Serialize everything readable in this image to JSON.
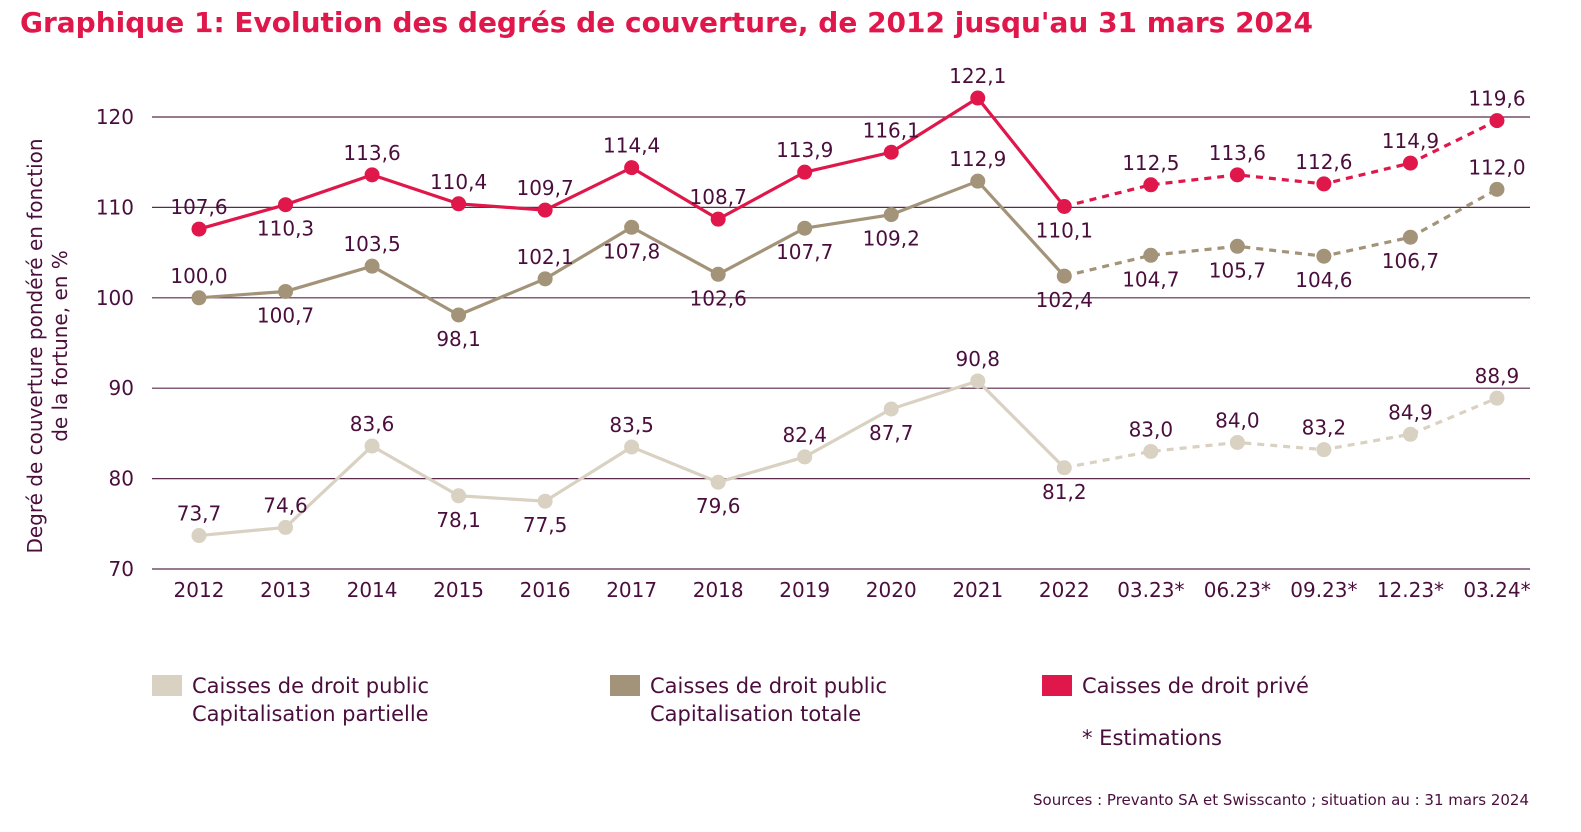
{
  "chart_data": {
    "type": "line",
    "title": "Graphique 1: Evolution des degrés de couverture, de 2012 jusqu'au 31 mars 2024",
    "ylabel_lines": [
      "Degré de couverture pondéré en fonction",
      "de la fortune, en %"
    ],
    "xlabel": "",
    "ylim": [
      70,
      120
    ],
    "yticks": [
      "70",
      "80",
      "90",
      "100",
      "110",
      "120"
    ],
    "ytick_values": [
      70,
      80,
      90,
      100,
      110,
      120
    ],
    "grid": true,
    "categories": [
      "2012",
      "2013",
      "2014",
      "2015",
      "2016",
      "2017",
      "2018",
      "2019",
      "2020",
      "2021",
      "2022",
      "03.23*",
      "06.23*",
      "09.23*",
      "12.23*",
      "03.24*"
    ],
    "estimate_start_index": 10,
    "series": [
      {
        "key": "prive",
        "name": "Caisses de droit privé",
        "name_lines": [
          "Caisses de droit privé"
        ],
        "color": "#e0174a",
        "values": [
          107.6,
          110.3,
          113.6,
          110.4,
          109.7,
          114.4,
          108.7,
          113.9,
          116.1,
          122.1,
          110.1,
          112.5,
          113.6,
          112.6,
          114.9,
          119.6
        ],
        "labels": [
          "107,6",
          "110,3",
          "113,6",
          "110,4",
          "109,7",
          "114,4",
          "108,7",
          "113,9",
          "116,1",
          "122,1",
          "110,1",
          "112,5",
          "113,6",
          "112,6",
          "114,9",
          "119,6"
        ],
        "label_pos": [
          "above",
          "below",
          "above",
          "above",
          "above",
          "above",
          "above",
          "above",
          "above",
          "above",
          "below",
          "above",
          "above",
          "above",
          "above",
          "above"
        ]
      },
      {
        "key": "totale",
        "name": "Caisses de droit public Capitalisation totale",
        "name_lines": [
          "Caisses de droit public",
          "Capitalisation totale"
        ],
        "color": "#a39378",
        "values": [
          100.0,
          100.7,
          103.5,
          98.1,
          102.1,
          107.8,
          102.6,
          107.7,
          109.2,
          112.9,
          102.4,
          104.7,
          105.7,
          104.6,
          106.7,
          112.0
        ],
        "labels": [
          "100,0",
          "100,7",
          "103,5",
          "98,1",
          "102,1",
          "107,8",
          "102,6",
          "107,7",
          "109,2",
          "112,9",
          "102,4",
          "104,7",
          "105,7",
          "104,6",
          "106,7",
          "112,0"
        ],
        "label_pos": [
          "above",
          "below",
          "above",
          "below",
          "above",
          "below",
          "below",
          "below",
          "below",
          "above",
          "below",
          "below",
          "below",
          "below",
          "below",
          "above"
        ]
      },
      {
        "key": "partielle",
        "name": "Caisses de droit public Capitalisation partielle",
        "name_lines": [
          "Caisses de droit public",
          "Capitalisation partielle"
        ],
        "color": "#d9d1c1",
        "values": [
          73.7,
          74.6,
          83.6,
          78.1,
          77.5,
          83.5,
          79.6,
          82.4,
          87.7,
          90.8,
          81.2,
          83.0,
          84.0,
          83.2,
          84.9,
          88.9
        ],
        "labels": [
          "73,7",
          "74,6",
          "83,6",
          "78,1",
          "77,5",
          "83,5",
          "79,6",
          "82,4",
          "87,7",
          "90,8",
          "81,2",
          "83,0",
          "84,0",
          "83,2",
          "84,9",
          "88,9"
        ],
        "label_pos": [
          "above",
          "above",
          "above",
          "below",
          "below",
          "above",
          "below",
          "above",
          "below",
          "above",
          "below",
          "above",
          "above",
          "above",
          "above",
          "above"
        ]
      }
    ],
    "legend_order": [
      "partielle",
      "totale",
      "prive"
    ],
    "legend_placement": "bottom",
    "note": "* Estimations",
    "source": "Sources : Prevanto SA et Swisscanto ; situation au : 31 mars 2024"
  }
}
